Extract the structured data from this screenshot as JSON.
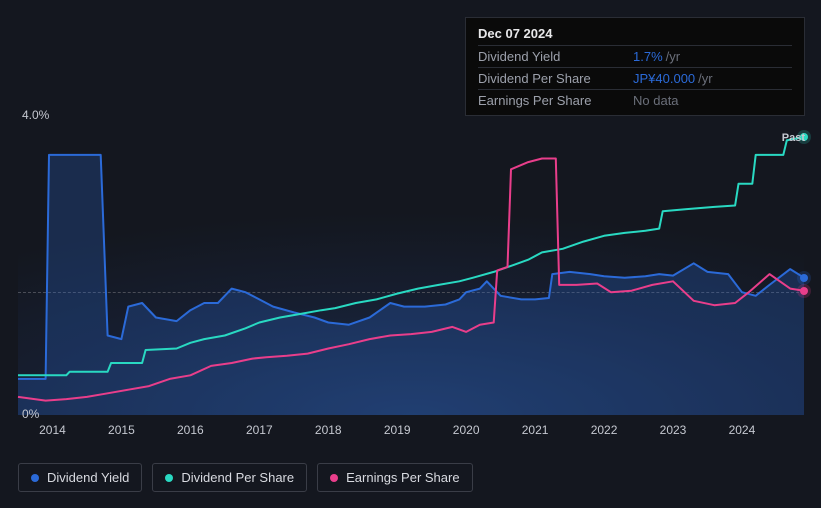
{
  "chart": {
    "type": "line",
    "background_color": "#14171f",
    "plot_bg_gradient": [
      "#1d3050",
      "#161e30",
      "#14171f"
    ],
    "grid_color": "#2a2d35",
    "text_color": "#c5c8d0",
    "line_width": 2,
    "xlim": [
      2013.5,
      2024.9
    ],
    "ylim": [
      0,
      4.0
    ],
    "y_ticks": [
      {
        "value": 4.0,
        "label": "4.0%"
      },
      {
        "value": 0,
        "label": "0%"
      }
    ],
    "x_ticks": [
      "2014",
      "2015",
      "2016",
      "2017",
      "2018",
      "2019",
      "2020",
      "2021",
      "2022",
      "2023",
      "2024"
    ],
    "badge": "Past",
    "series": [
      {
        "name": "Dividend Yield",
        "color": "#2b6ad8",
        "fill_opacity": 0.25,
        "points": [
          [
            2013.5,
            0.5
          ],
          [
            2013.9,
            0.5
          ],
          [
            2013.95,
            3.6
          ],
          [
            2014.7,
            3.6
          ],
          [
            2014.8,
            1.1
          ],
          [
            2015.0,
            1.05
          ],
          [
            2015.1,
            1.5
          ],
          [
            2015.3,
            1.55
          ],
          [
            2015.5,
            1.35
          ],
          [
            2015.8,
            1.3
          ],
          [
            2016.0,
            1.45
          ],
          [
            2016.2,
            1.55
          ],
          [
            2016.4,
            1.55
          ],
          [
            2016.6,
            1.75
          ],
          [
            2016.8,
            1.7
          ],
          [
            2017.0,
            1.6
          ],
          [
            2017.2,
            1.5
          ],
          [
            2017.5,
            1.42
          ],
          [
            2017.8,
            1.35
          ],
          [
            2018.0,
            1.28
          ],
          [
            2018.3,
            1.25
          ],
          [
            2018.6,
            1.35
          ],
          [
            2018.9,
            1.55
          ],
          [
            2019.1,
            1.5
          ],
          [
            2019.4,
            1.5
          ],
          [
            2019.7,
            1.53
          ],
          [
            2019.9,
            1.6
          ],
          [
            2020.0,
            1.7
          ],
          [
            2020.2,
            1.75
          ],
          [
            2020.3,
            1.85
          ],
          [
            2020.5,
            1.65
          ],
          [
            2020.8,
            1.6
          ],
          [
            2021.0,
            1.6
          ],
          [
            2021.2,
            1.62
          ],
          [
            2021.25,
            1.95
          ],
          [
            2021.5,
            1.98
          ],
          [
            2021.8,
            1.95
          ],
          [
            2022.0,
            1.92
          ],
          [
            2022.3,
            1.9
          ],
          [
            2022.6,
            1.92
          ],
          [
            2022.8,
            1.95
          ],
          [
            2023.0,
            1.93
          ],
          [
            2023.3,
            2.1
          ],
          [
            2023.5,
            1.98
          ],
          [
            2023.8,
            1.95
          ],
          [
            2024.0,
            1.7
          ],
          [
            2024.2,
            1.65
          ],
          [
            2024.4,
            1.8
          ],
          [
            2024.7,
            2.02
          ],
          [
            2024.9,
            1.9
          ]
        ]
      },
      {
        "name": "Dividend Per Share",
        "color": "#29d9c2",
        "fill_opacity": 0,
        "points": [
          [
            2013.5,
            0.55
          ],
          [
            2014.2,
            0.55
          ],
          [
            2014.25,
            0.6
          ],
          [
            2014.8,
            0.6
          ],
          [
            2014.85,
            0.72
          ],
          [
            2015.3,
            0.72
          ],
          [
            2015.35,
            0.9
          ],
          [
            2015.8,
            0.92
          ],
          [
            2016.0,
            1.0
          ],
          [
            2016.2,
            1.05
          ],
          [
            2016.5,
            1.1
          ],
          [
            2016.8,
            1.2
          ],
          [
            2017.0,
            1.28
          ],
          [
            2017.3,
            1.35
          ],
          [
            2017.6,
            1.4
          ],
          [
            2017.9,
            1.45
          ],
          [
            2018.1,
            1.48
          ],
          [
            2018.4,
            1.55
          ],
          [
            2018.7,
            1.6
          ],
          [
            2019.0,
            1.68
          ],
          [
            2019.3,
            1.75
          ],
          [
            2019.6,
            1.8
          ],
          [
            2019.9,
            1.85
          ],
          [
            2020.1,
            1.9
          ],
          [
            2020.4,
            1.98
          ],
          [
            2020.7,
            2.08
          ],
          [
            2020.9,
            2.15
          ],
          [
            2021.1,
            2.25
          ],
          [
            2021.4,
            2.3
          ],
          [
            2021.7,
            2.4
          ],
          [
            2022.0,
            2.48
          ],
          [
            2022.3,
            2.52
          ],
          [
            2022.6,
            2.55
          ],
          [
            2022.8,
            2.58
          ],
          [
            2022.85,
            2.82
          ],
          [
            2023.2,
            2.85
          ],
          [
            2023.6,
            2.88
          ],
          [
            2023.9,
            2.9
          ],
          [
            2023.95,
            3.2
          ],
          [
            2024.15,
            3.2
          ],
          [
            2024.2,
            3.6
          ],
          [
            2024.6,
            3.6
          ],
          [
            2024.65,
            3.8
          ],
          [
            2024.9,
            3.85
          ]
        ]
      },
      {
        "name": "Earnings Per Share",
        "color": "#e93e8b",
        "fill_opacity": 0,
        "points": [
          [
            2013.5,
            0.25
          ],
          [
            2013.9,
            0.2
          ],
          [
            2014.2,
            0.22
          ],
          [
            2014.5,
            0.25
          ],
          [
            2014.8,
            0.3
          ],
          [
            2015.1,
            0.35
          ],
          [
            2015.4,
            0.4
          ],
          [
            2015.7,
            0.5
          ],
          [
            2016.0,
            0.55
          ],
          [
            2016.3,
            0.68
          ],
          [
            2016.6,
            0.72
          ],
          [
            2016.9,
            0.78
          ],
          [
            2017.1,
            0.8
          ],
          [
            2017.4,
            0.82
          ],
          [
            2017.7,
            0.85
          ],
          [
            2018.0,
            0.92
          ],
          [
            2018.3,
            0.98
          ],
          [
            2018.6,
            1.05
          ],
          [
            2018.9,
            1.1
          ],
          [
            2019.2,
            1.12
          ],
          [
            2019.5,
            1.15
          ],
          [
            2019.8,
            1.22
          ],
          [
            2020.0,
            1.15
          ],
          [
            2020.2,
            1.25
          ],
          [
            2020.4,
            1.28
          ],
          [
            2020.45,
            2.0
          ],
          [
            2020.6,
            2.05
          ],
          [
            2020.65,
            3.4
          ],
          [
            2020.9,
            3.5
          ],
          [
            2021.1,
            3.55
          ],
          [
            2021.3,
            3.55
          ],
          [
            2021.35,
            1.8
          ],
          [
            2021.6,
            1.8
          ],
          [
            2021.9,
            1.82
          ],
          [
            2022.1,
            1.7
          ],
          [
            2022.4,
            1.72
          ],
          [
            2022.7,
            1.8
          ],
          [
            2023.0,
            1.85
          ],
          [
            2023.3,
            1.58
          ],
          [
            2023.6,
            1.52
          ],
          [
            2023.9,
            1.55
          ],
          [
            2024.1,
            1.7
          ],
          [
            2024.4,
            1.95
          ],
          [
            2024.7,
            1.75
          ],
          [
            2024.9,
            1.72
          ]
        ]
      }
    ],
    "crosshair_y": 1.7
  },
  "tooltip": {
    "date": "Dec 07 2024",
    "rows": [
      {
        "label": "Dividend Yield",
        "value": "1.7%",
        "unit": "/yr",
        "value_color": "#2b6ad8"
      },
      {
        "label": "Dividend Per Share",
        "value": "JP¥40.000",
        "unit": "/yr",
        "value_color": "#2b6ad8"
      },
      {
        "label": "Earnings Per Share",
        "value": "",
        "unit": "",
        "nodata": "No data"
      }
    ]
  },
  "legend": {
    "items": [
      {
        "label": "Dividend Yield",
        "color": "#2b6ad8"
      },
      {
        "label": "Dividend Per Share",
        "color": "#29d9c2"
      },
      {
        "label": "Earnings Per Share",
        "color": "#e93e8b"
      }
    ]
  }
}
